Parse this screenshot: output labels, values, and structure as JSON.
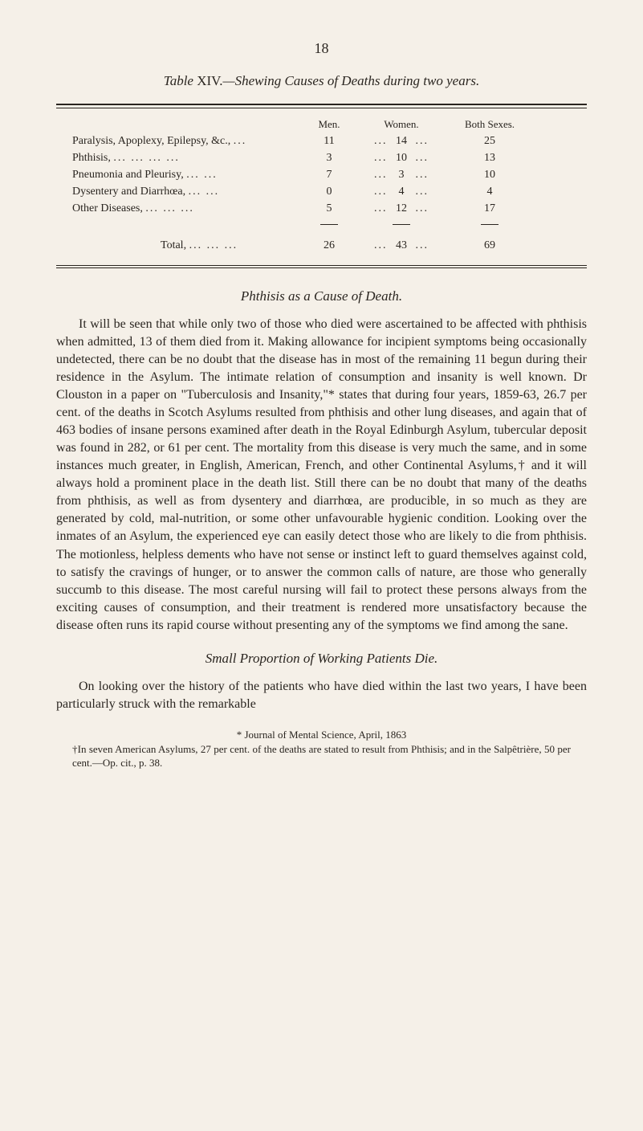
{
  "page_number": "18",
  "table_title_prefix": "Table ",
  "table_title_roman": "XIV.",
  "table_title_rest": "—Shewing Causes of Deaths during two years.",
  "table": {
    "headers": {
      "men": "Men.",
      "women": "Women.",
      "both": "Both Sexes."
    },
    "rows": [
      {
        "label": "Paralysis, Apoplexy, Epilepsy, &c.,",
        "dots": "...",
        "men": "11",
        "women": "14",
        "both": "25"
      },
      {
        "label": "Phthisis,",
        "dots": "...   ...   ...   ...",
        "men": "3",
        "women": "10",
        "both": "13"
      },
      {
        "label": "Pneumonia and Pleurisy,",
        "dots": "...   ...",
        "men": "7",
        "women": "3",
        "both": "10"
      },
      {
        "label": "Dysentery and Diarrhœa,",
        "dots": "...   ...",
        "men": "0",
        "women": "4",
        "both": "4"
      },
      {
        "label": "Other Diseases,",
        "dots": "...   ...   ...",
        "men": "5",
        "women": "12",
        "both": "17"
      }
    ],
    "total": {
      "label": "Total,",
      "dots": "...   ...   ...",
      "men": "26",
      "women": "43",
      "both": "69"
    }
  },
  "heading1": "Phthisis as a Cause of Death.",
  "para1": "It will be seen that while only two of those who died were ascer­tained to be affected with phthisis when admitted, 13 of them died from it. Making allowance for incipient symptoms being occasionally undetected, there can be no doubt that the disease has in most of the remaining 11 begun during their residence in the Asylum. The intimate relation of consumption and insanity is well known. Dr Clouston in a paper on \"Tuberculosis and Insanity,\"* states that during four years, 1859-63, 26.7 per cent. of the deaths in Scotch Asylums resulted from phthisis and other lung diseases, and again that of 463 bodies of insane persons examined after death in the Royal Edinburgh Asylum, tubercular deposit was found in 282, or 61 per cent. The mortality from this disease is very much the same, and in some instances much greater, in English, American, French, and other Continental Asylums,† and it will always hold a prominent place in the death list. Still there can be no doubt that many of the deaths from phthisis, as well as from dysentery and diarrhœa, are producible, in so much as they are generated by cold, mal-nutrition, or some other unfavourable hygienic condition. Looking over the inmates of an Asylum, the experienced eye can easily detect those who are likely to die from phthisis. The motionless, helpless dements who have not sense or instinct left to guard themselves against cold, to satisfy the cravings of hunger, or to answer the common calls of nature, are those who generally succumb to this disease. The most careful nursing will fail to protect these persons always from the exciting causes of consumption, and their treatment is rendered more unsatisfactory because the disease often runs its rapid course without presenting any of the symptoms we find among the sane.",
  "heading2": "Small Proportion of Working Patients Die.",
  "para2": "On looking over the history of the patients who have died within the last two years, I have been particularly struck with the remarkable",
  "footnote1": "* Journal of Mental Science, April, 1863",
  "footnote2": "†In seven American Asylums, 27 per cent. of the deaths are stated to result from Phthisis; and in the Salpêtrière, 50 per cent.—Op. cit., p. 38."
}
